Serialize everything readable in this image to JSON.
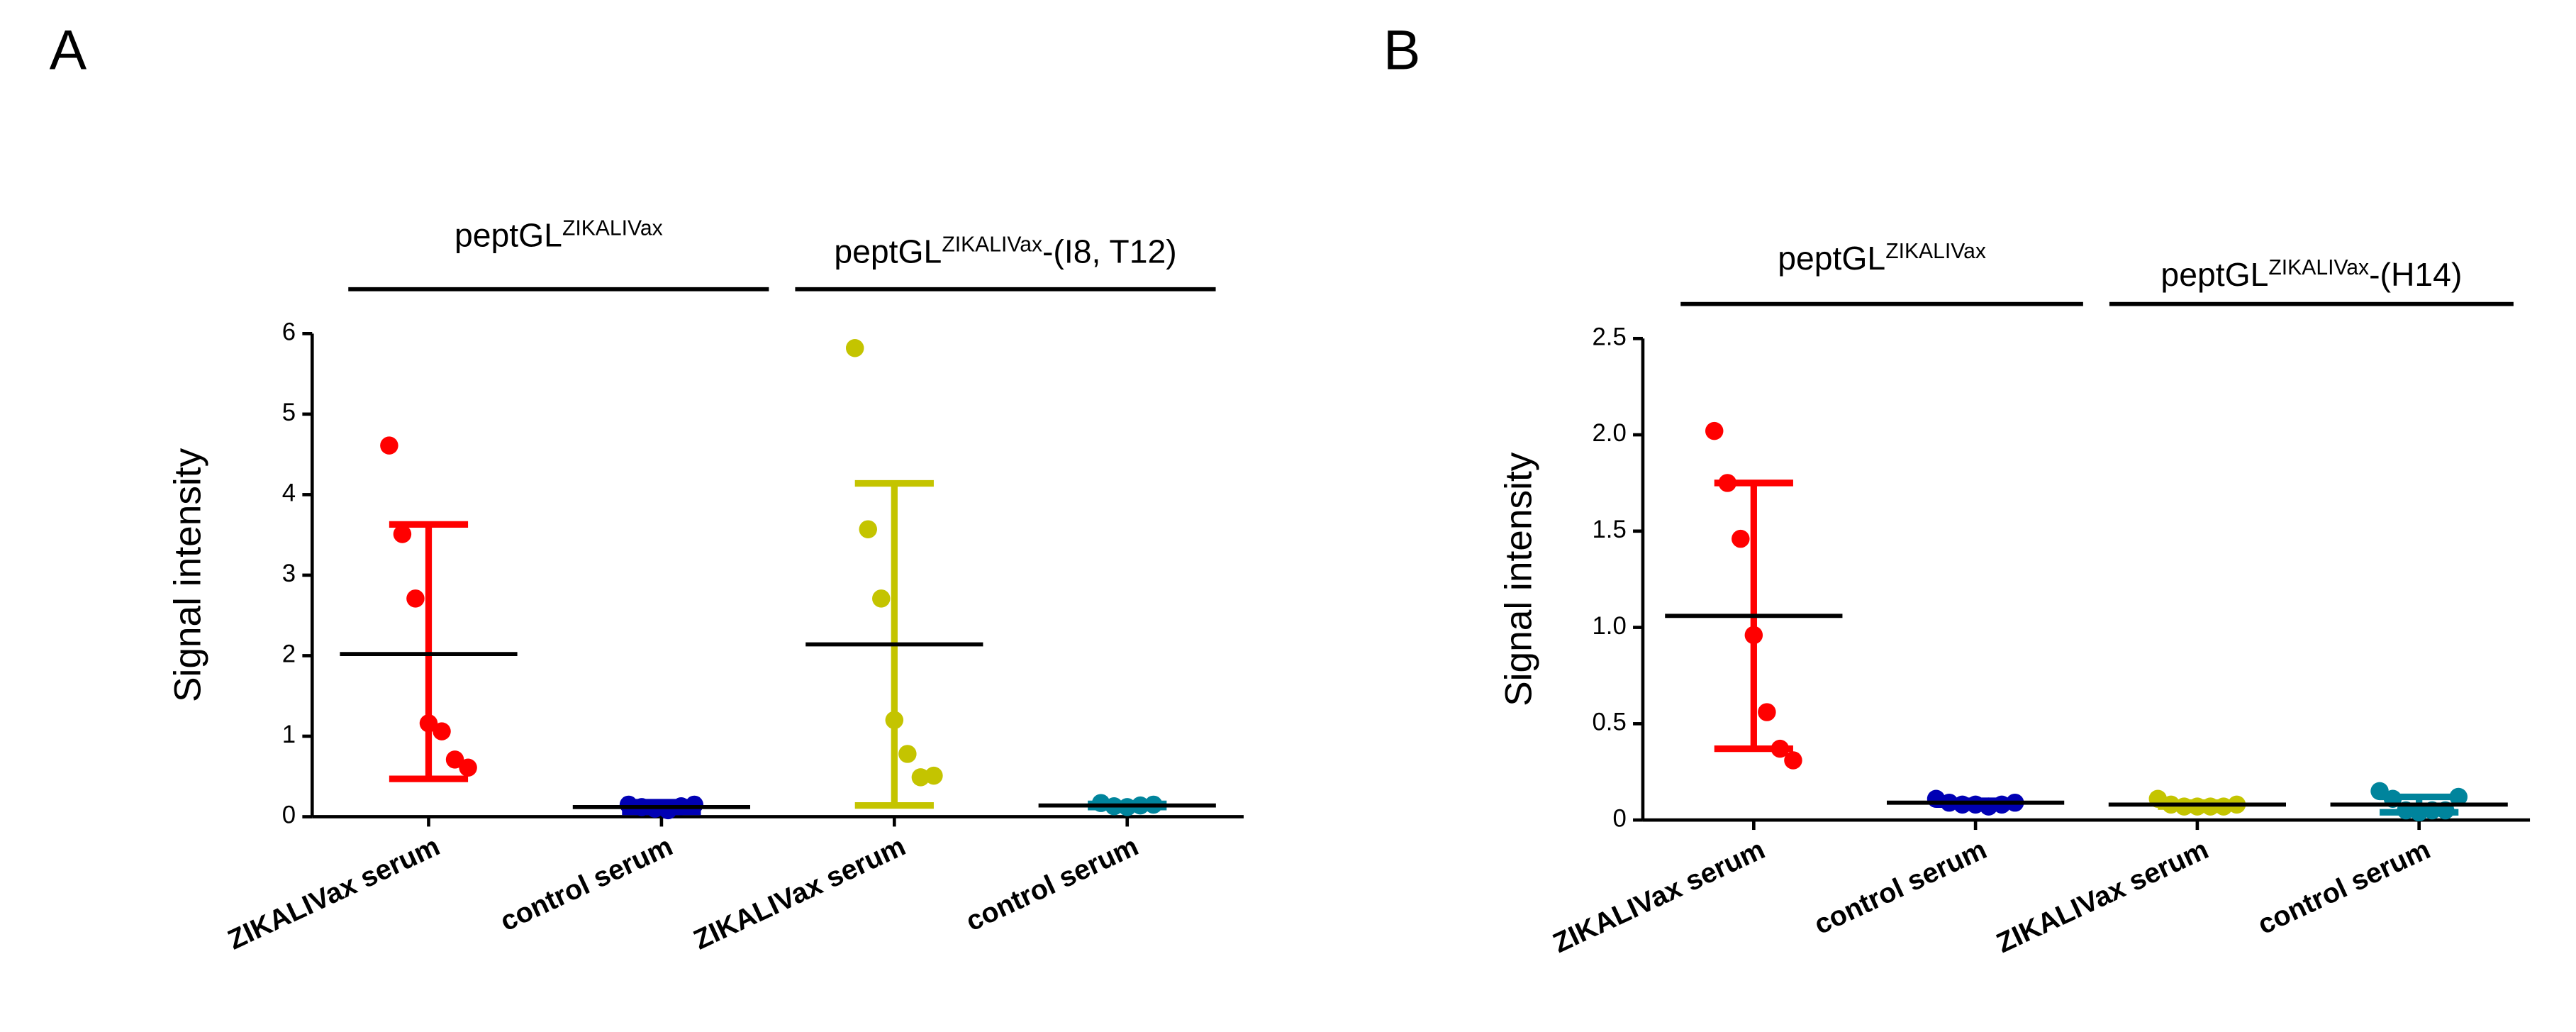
{
  "chart_data": [
    {
      "type": "dot",
      "panel": "A",
      "ylabel": "Signal intensity",
      "ylim": [
        0,
        6
      ],
      "yticks": [
        0,
        1,
        2,
        3,
        4,
        5,
        6
      ],
      "categories": [
        "ZIKALIVax serum",
        "control serum",
        "ZIKALIVax serum",
        "control serum"
      ],
      "groups": [
        {
          "label": "peptGL",
          "sup": "ZIKALIVax"
        },
        {
          "label": "peptGL",
          "sup": "ZIKALIVax",
          "suffix": "-(I8, T12)"
        }
      ],
      "series": [
        {
          "color": "#ff0000",
          "points": [
            4.61,
            3.51,
            2.71,
            1.16,
            1.06,
            0.71,
            0.61
          ],
          "mean": 2.02,
          "error_low": 0.47,
          "error_high": 3.63
        },
        {
          "color": "#0000b4",
          "points": [
            0.15,
            0.12,
            0.1,
            0.08,
            0.13,
            0.15
          ],
          "mean": 0.12,
          "error_low": 0.06,
          "error_high": 0.18
        },
        {
          "color": "#c4c400",
          "points": [
            5.82,
            3.57,
            2.71,
            1.2,
            0.78,
            0.49,
            0.51
          ],
          "mean": 2.14,
          "error_low": 0.14,
          "error_high": 4.14
        },
        {
          "color": "#00849c",
          "points": [
            0.17,
            0.13,
            0.12,
            0.14,
            0.15
          ],
          "mean": 0.14,
          "error_low": 0.12,
          "error_high": 0.16
        }
      ]
    },
    {
      "type": "dot",
      "panel": "B",
      "ylabel": "Signal intensity",
      "ylim": [
        0,
        2.5
      ],
      "yticks": [
        0,
        0.5,
        {
          "value": 1,
          "label": "1.0"
        },
        1.5,
        {
          "value": 2,
          "label": "2.0"
        },
        2.5
      ],
      "categories": [
        "ZIKALIVax serum",
        "control serum",
        "ZIKALIVax serum",
        "control serum"
      ],
      "groups": [
        {
          "label": "peptGL",
          "sup": "ZIKALIVax"
        },
        {
          "label": "peptGL",
          "sup": "ZIKALIVax",
          "suffix": "-(H14)"
        }
      ],
      "series": [
        {
          "color": "#ff0000",
          "points": [
            2.02,
            1.75,
            1.46,
            0.96,
            0.56,
            0.37,
            0.31
          ],
          "mean": 1.06,
          "error_low": 0.37,
          "error_high": 1.75
        },
        {
          "color": "#0000b4",
          "points": [
            0.11,
            0.09,
            0.08,
            0.08,
            0.07,
            0.08,
            0.09
          ],
          "mean": 0.09,
          "error_low": 0.08,
          "error_high": 0.1
        },
        {
          "color": "#c4c400",
          "points": [
            0.11,
            0.08,
            0.07,
            0.07,
            0.07,
            0.07,
            0.08
          ],
          "mean": 0.08,
          "error_low": 0.07,
          "error_high": 0.09
        },
        {
          "color": "#00849c",
          "points": [
            0.15,
            0.11,
            0.05,
            0.04,
            0.05,
            0.05,
            0.12
          ],
          "mean": 0.08,
          "error_low": 0.04,
          "error_high": 0.12
        }
      ]
    }
  ]
}
